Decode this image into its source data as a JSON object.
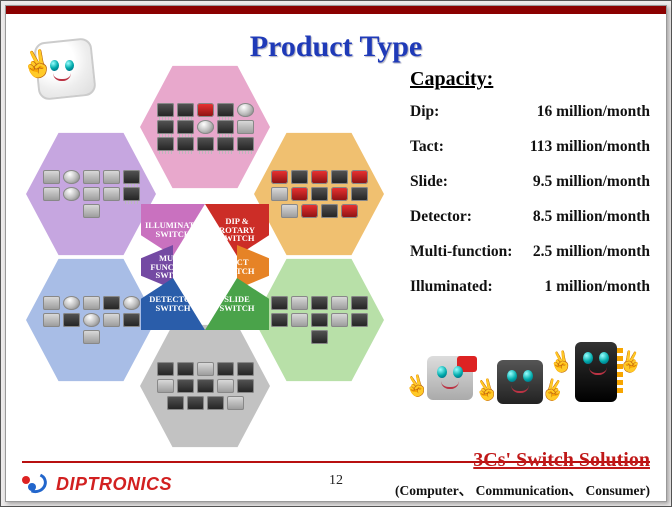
{
  "title": "Product Type",
  "hex_colors": {
    "top": "#e8a8cc",
    "ul": "#c6a6e0",
    "ur": "#f0c070",
    "ll": "#a8bde6",
    "lr": "#b8e0a8",
    "bot": "#c2c2c2"
  },
  "center_labels": {
    "ul": "ILLUMINATED SWITCH",
    "ur": "DIP & ROTARY SWITCH",
    "ml": "MULTI FUNCTION SWITCH",
    "mr": "TACT SWITCH",
    "ll": "DETECTOR SWITCH",
    "lr": "SLIDE SWITCH"
  },
  "capacity": {
    "title": "Capacity:",
    "rows": [
      {
        "label": "Dip:",
        "value": "16 million/month"
      },
      {
        "label": "Tact:",
        "value": "113 million/month"
      },
      {
        "label": "Slide:",
        "value": "9.5 million/month"
      },
      {
        "label": "Detector:",
        "value": "8.5 million/month"
      },
      {
        "label": "Multi-function:",
        "value": "2.5 million/month"
      },
      {
        "label": "Illuminated:",
        "value": "1 million/month"
      }
    ]
  },
  "footer": {
    "brand": "DIPTRONICS",
    "page": "12",
    "solution_title": "3Cs' Switch Solution",
    "solution_sub": "(Computer、 Communication、 Consumer)"
  }
}
